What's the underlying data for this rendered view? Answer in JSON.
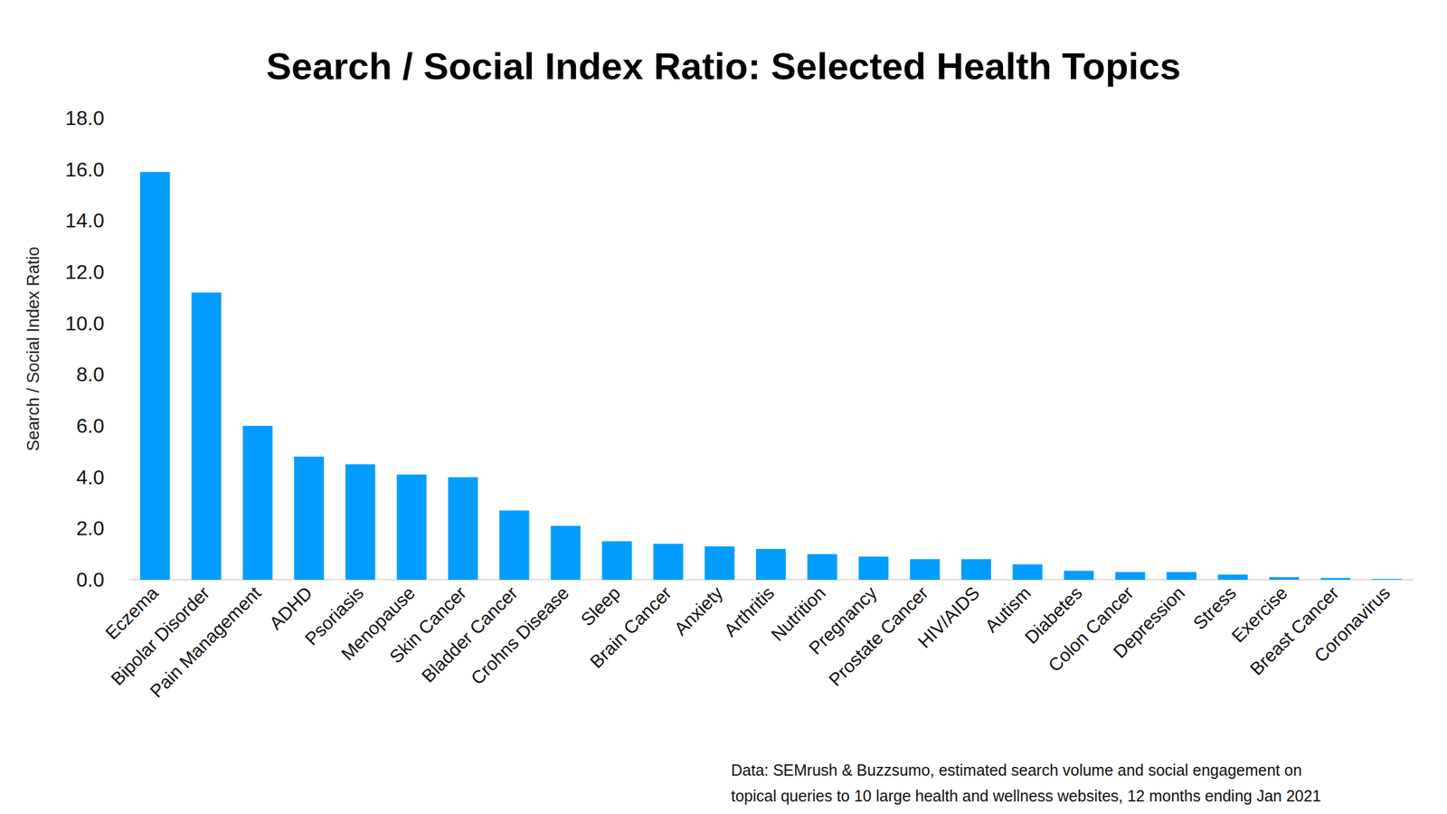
{
  "chart_data": {
    "type": "bar",
    "title": "Search / Social Index Ratio: Selected Health Topics",
    "y_label": "Search / Social Index Ratio",
    "note": [
      "Data: SEMrush & Buzzsumo, estimated search volume and social engagement on",
      "topical queries to 10 large health and wellness websites, 12 months ending Jan 2021"
    ],
    "categories": [
      "Eczema",
      "Bipolar Disorder",
      "Pain Management",
      "ADHD",
      "Psoriasis",
      "Menopause",
      "Skin Cancer",
      "Bladder Cancer",
      "Crohns Disease",
      "Sleep",
      "Brain Cancer",
      "Anxiety",
      "Arthritis",
      "Nutrition",
      "Pregnancy",
      "Prostate Cancer",
      "HIV/AIDS",
      "Autism",
      "Diabetes",
      "Colon Cancer",
      "Depression",
      "Stress",
      "Exercise",
      "Breast Cancer",
      "Coronavirus"
    ],
    "values": [
      15.9,
      11.2,
      6.0,
      4.8,
      4.5,
      4.1,
      4.0,
      2.7,
      2.1,
      1.5,
      1.4,
      1.3,
      1.2,
      1.0,
      0.9,
      0.8,
      0.8,
      0.6,
      0.35,
      0.3,
      0.3,
      0.2,
      0.1,
      0.07,
      0.03
    ],
    "color": "#009dff",
    "ylim": [
      0,
      18
    ],
    "yticks": [
      {
        "value": 0,
        "label": "0.0"
      },
      {
        "value": 2,
        "label": "2.0"
      },
      {
        "value": 4,
        "label": "4.0"
      },
      {
        "value": 6,
        "label": "6.0"
      },
      {
        "value": 8,
        "label": "8.0"
      },
      {
        "value": 10,
        "label": "10.0"
      },
      {
        "value": 12,
        "label": "12.0"
      },
      {
        "value": 14,
        "label": "14.0"
      },
      {
        "value": 16,
        "label": "16.0"
      },
      {
        "value": 18,
        "label": "18.0"
      }
    ],
    "grid": false
  }
}
